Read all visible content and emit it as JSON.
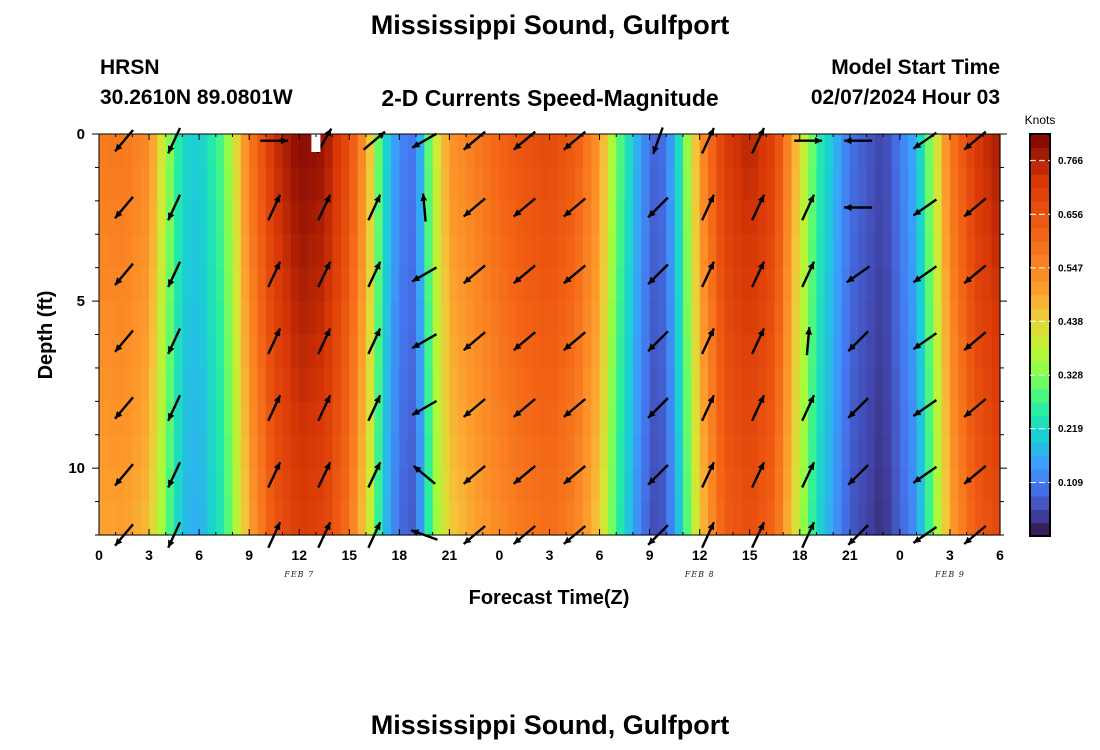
{
  "chart_data": {
    "type": "heatmap",
    "title": "Mississippi Sound, Gulfport",
    "station": "HRSN",
    "coordinates": "30.2610N  89.0801W",
    "subtitle": "2-D Currents Speed-Magnitude",
    "model_start_label": "Model Start Time",
    "model_start_value": "02/07/2024 Hour 03",
    "xlabel": "Forecast Time(Z)",
    "ylabel": "Depth (ft)",
    "x_ticks": [
      {
        "hours": 0,
        "label": "0"
      },
      {
        "hours": 3,
        "label": "3"
      },
      {
        "hours": 6,
        "label": "6"
      },
      {
        "hours": 9,
        "label": "9"
      },
      {
        "hours": 12,
        "label": "12"
      },
      {
        "hours": 15,
        "label": "15"
      },
      {
        "hours": 18,
        "label": "18"
      },
      {
        "hours": 21,
        "label": "21"
      },
      {
        "hours": 24,
        "label": "0"
      },
      {
        "hours": 27,
        "label": "3"
      },
      {
        "hours": 30,
        "label": "6"
      },
      {
        "hours": 33,
        "label": "9"
      },
      {
        "hours": 36,
        "label": "12"
      },
      {
        "hours": 39,
        "label": "15"
      },
      {
        "hours": 42,
        "label": "18"
      },
      {
        "hours": 45,
        "label": "21"
      },
      {
        "hours": 48,
        "label": "0"
      },
      {
        "hours": 51,
        "label": "3"
      },
      {
        "hours": 54,
        "label": "6"
      }
    ],
    "date_labels": [
      {
        "hours": 12,
        "label": "FEB 7"
      },
      {
        "hours": 36,
        "label": "FEB 8"
      },
      {
        "hours": 51,
        "label": "FEB 9"
      }
    ],
    "xlim": [
      0,
      54
    ],
    "ylim": [
      0,
      12
    ],
    "y_ticks": [
      0,
      5,
      10
    ],
    "colorbar": {
      "label": "Knots",
      "min": 0.0,
      "max": 0.82,
      "ticks": [
        0.766,
        0.656,
        0.547,
        0.438,
        0.328,
        0.219,
        0.109
      ]
    },
    "time_hours": [
      0,
      1.5,
      3,
      4,
      5,
      6,
      7.5,
      9,
      10.5,
      12,
      13.5,
      15,
      16.2,
      17,
      18,
      19,
      20,
      21,
      22.5,
      24,
      25.5,
      27,
      28.5,
      30,
      31,
      32.5,
      33.5,
      34.5,
      36,
      37.5,
      39,
      40.5,
      41.5,
      43,
      45,
      47,
      49,
      50,
      51,
      52.5,
      54
    ],
    "surface_speed": [
      0.55,
      0.56,
      0.52,
      0.35,
      0.2,
      0.18,
      0.28,
      0.55,
      0.72,
      0.79,
      0.77,
      0.65,
      0.45,
      0.22,
      0.1,
      0.08,
      0.35,
      0.5,
      0.55,
      0.6,
      0.64,
      0.66,
      0.62,
      0.5,
      0.3,
      0.12,
      0.05,
      0.15,
      0.5,
      0.7,
      0.74,
      0.68,
      0.5,
      0.25,
      0.08,
      0.03,
      0.15,
      0.35,
      0.55,
      0.7,
      0.76
    ],
    "vectors": {
      "times": [
        1.5,
        4.5,
        10.5,
        13.5,
        16.5,
        19.5,
        22.5,
        25.5,
        28.5,
        33.5,
        36.5,
        39.5,
        42.5,
        45.5,
        49.5,
        52.5
      ],
      "depths": [
        0.2,
        2.2,
        4.2,
        6.2,
        8.2,
        10.2,
        12
      ],
      "directions_deg": [
        [
          -130,
          -115,
          0,
          60,
          40,
          -150,
          -140,
          -140,
          -140,
          250,
          65,
          65,
          0,
          180,
          -145,
          -140
        ],
        [
          -130,
          -115,
          65,
          65,
          65,
          95,
          -140,
          -140,
          -140,
          225,
          65,
          65,
          65,
          180,
          -145,
          -140
        ],
        [
          -130,
          -115,
          65,
          65,
          65,
          -150,
          -140,
          -140,
          -140,
          225,
          65,
          65,
          65,
          -145,
          -145,
          -140
        ],
        [
          -130,
          -115,
          65,
          65,
          65,
          -150,
          -140,
          -140,
          -140,
          225,
          65,
          65,
          85,
          -135,
          -145,
          -140
        ],
        [
          -130,
          -115,
          65,
          65,
          65,
          -150,
          -140,
          -140,
          -140,
          225,
          65,
          65,
          65,
          -135,
          -145,
          -140
        ],
        [
          -130,
          -115,
          65,
          65,
          65,
          140,
          -140,
          -140,
          -140,
          225,
          65,
          65,
          65,
          -135,
          -145,
          -140
        ],
        [
          -130,
          -115,
          65,
          65,
          65,
          160,
          -140,
          -140,
          -140,
          225,
          65,
          65,
          65,
          -135,
          -145,
          -140
        ]
      ]
    }
  },
  "footer_title": "Mississippi Sound, Gulfport"
}
